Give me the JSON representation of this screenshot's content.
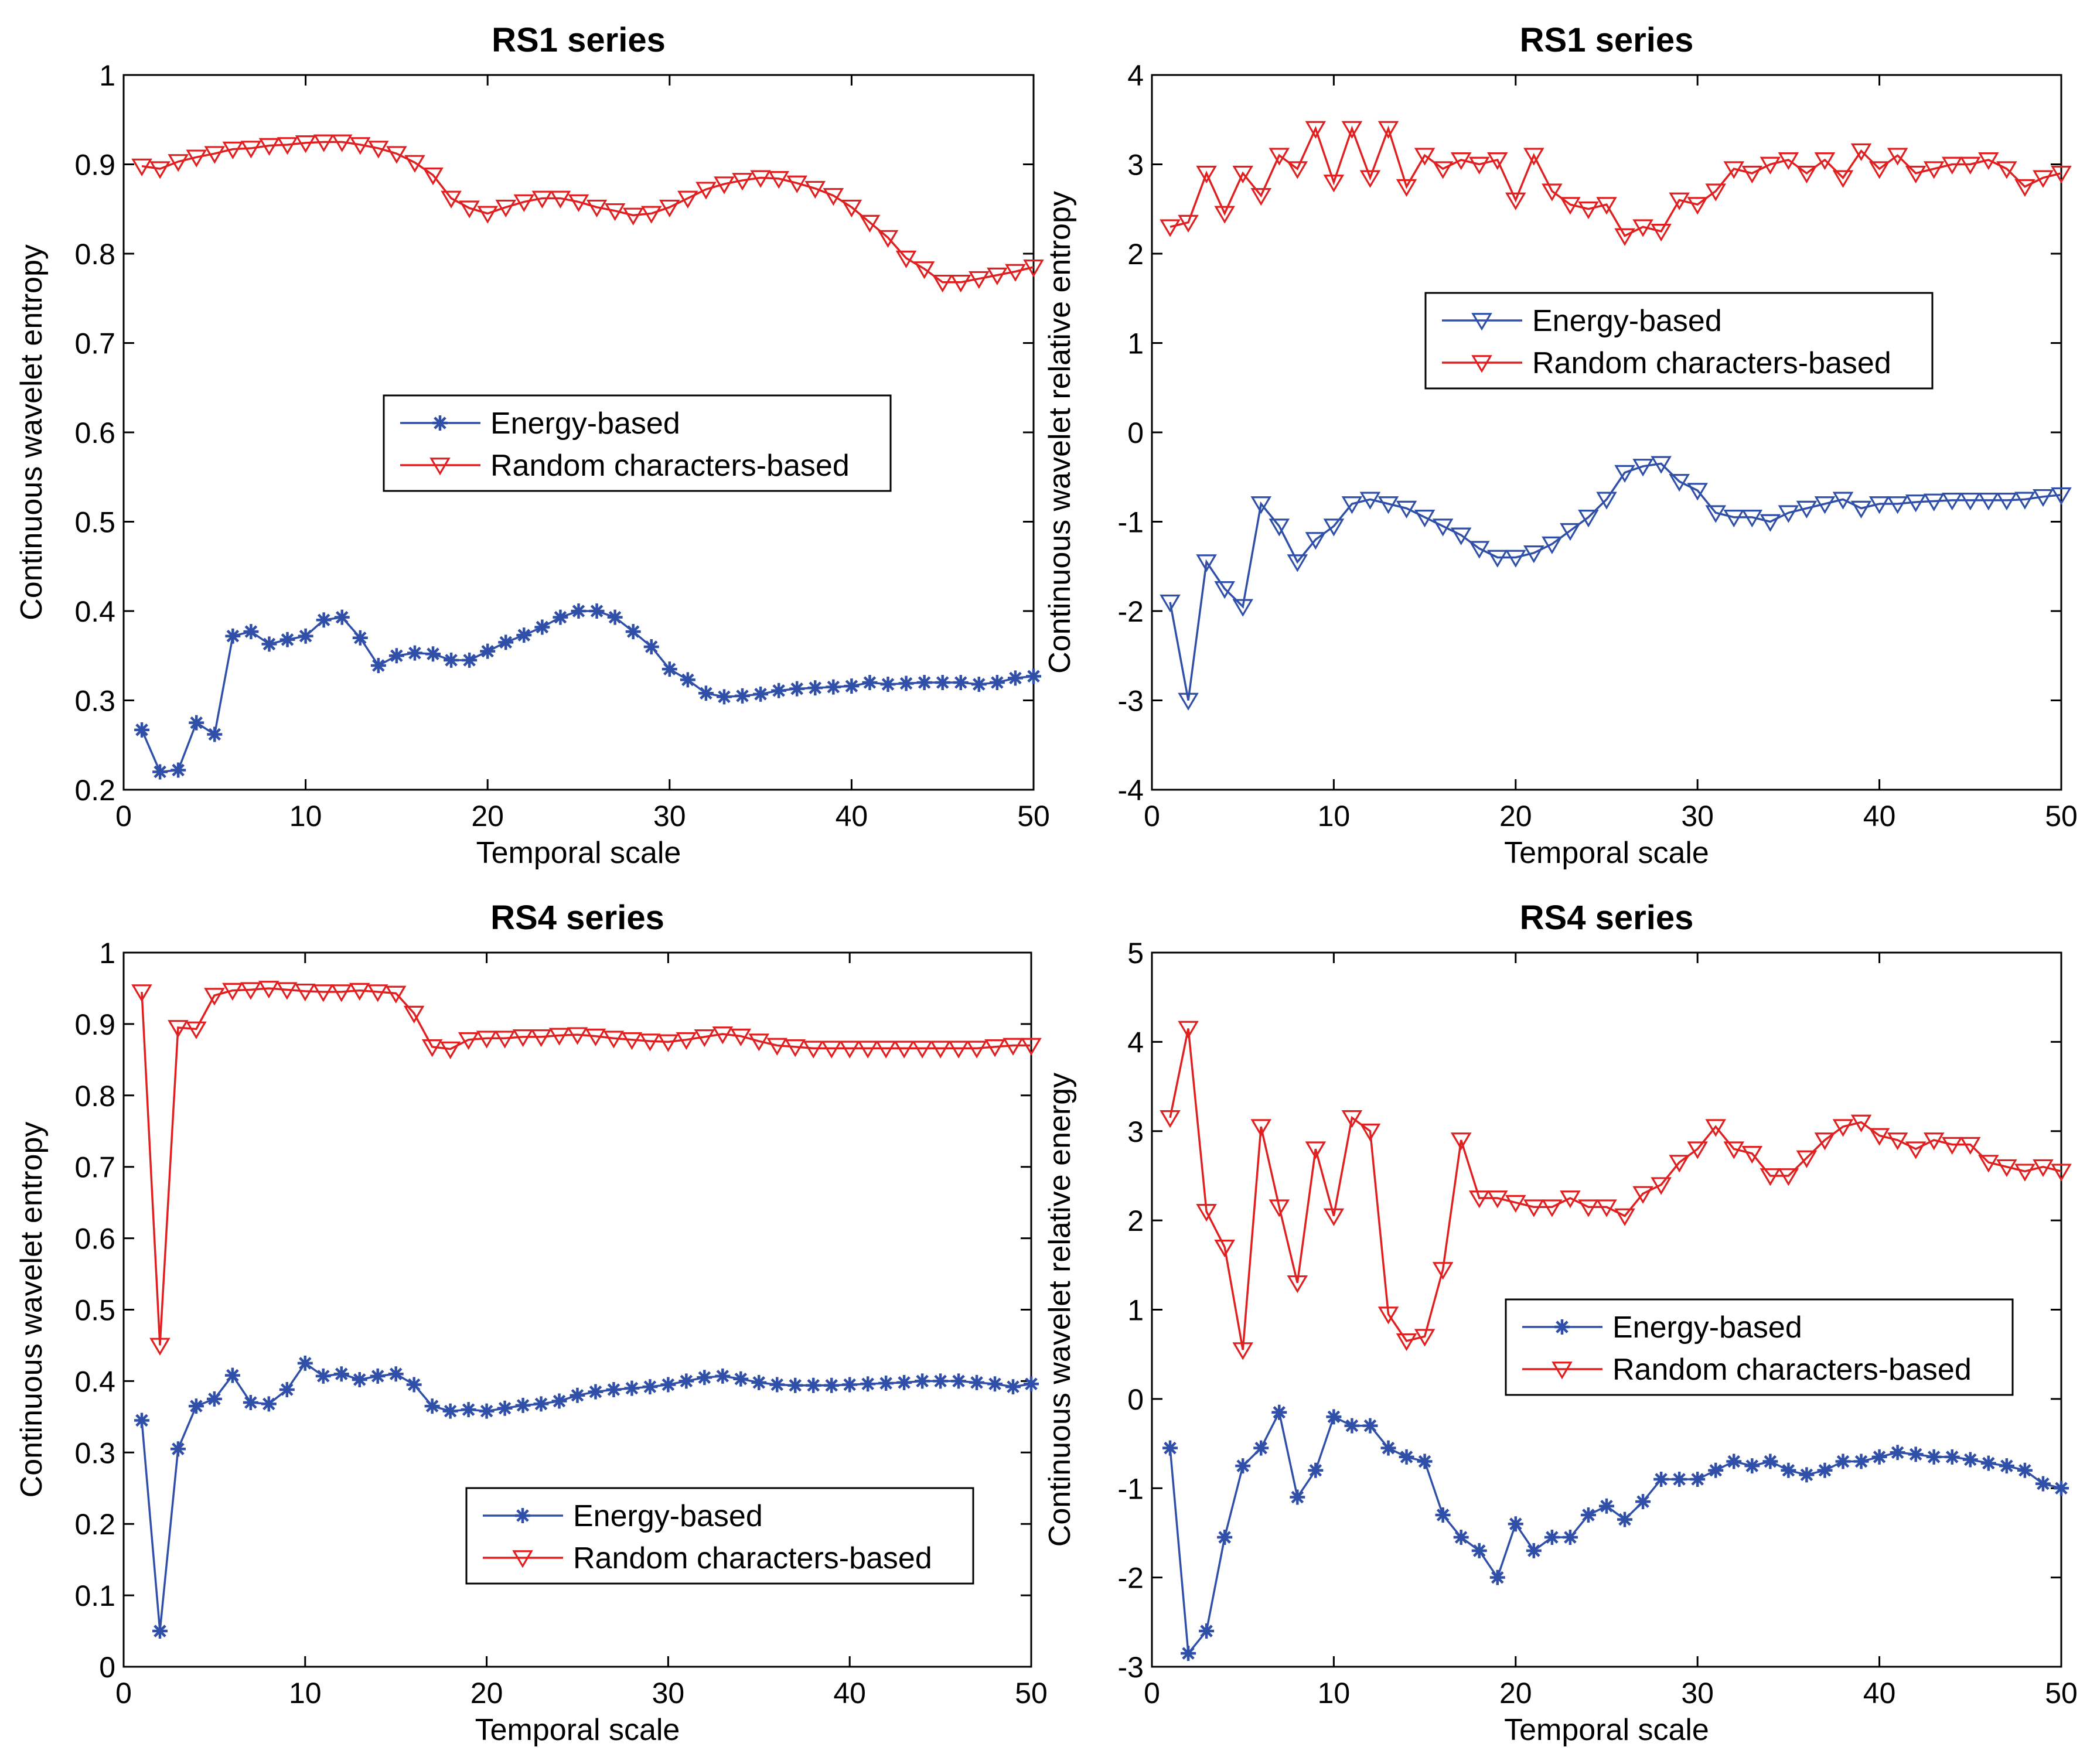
{
  "chart_data": [
    {
      "type": "line",
      "title": "RS1 series",
      "xlabel": "Temporal scale",
      "ylabel": "Continuous wavelet entropy",
      "xlim": [
        0,
        50
      ],
      "ylim": [
        0.2,
        1
      ],
      "xticks": [
        0,
        10,
        20,
        30,
        40,
        50
      ],
      "yticks": [
        0.2,
        0.3,
        0.4,
        0.5,
        0.6,
        0.7,
        0.8,
        0.9,
        1
      ],
      "ytick_labels": [
        "0.2",
        "0.3",
        "0.4",
        "0.5",
        "0.6",
        "0.7",
        "0.8",
        "0.9",
        "1"
      ],
      "legend_position": "center",
      "series": [
        {
          "name": "Energy-based",
          "color": "#2f4fa8",
          "marker": "star",
          "values": [
            0.267,
            0.22,
            0.222,
            0.275,
            0.262,
            0.372,
            0.377,
            0.363,
            0.368,
            0.372,
            0.39,
            0.393,
            0.37,
            0.339,
            0.35,
            0.353,
            0.352,
            0.345,
            0.345,
            0.355,
            0.365,
            0.373,
            0.382,
            0.393,
            0.4,
            0.4,
            0.393,
            0.377,
            0.36,
            0.335,
            0.323,
            0.308,
            0.304,
            0.305,
            0.307,
            0.311,
            0.313,
            0.314,
            0.315,
            0.316,
            0.32,
            0.318,
            0.319,
            0.32,
            0.32,
            0.32,
            0.318,
            0.32,
            0.325,
            0.327
          ]
        },
        {
          "name": "Random characters-based",
          "color": "#e02020",
          "marker": "triangle-down",
          "values": [
            0.898,
            0.895,
            0.903,
            0.908,
            0.912,
            0.917,
            0.918,
            0.921,
            0.922,
            0.924,
            0.925,
            0.925,
            0.922,
            0.918,
            0.912,
            0.902,
            0.888,
            0.862,
            0.851,
            0.845,
            0.852,
            0.858,
            0.862,
            0.862,
            0.858,
            0.852,
            0.848,
            0.843,
            0.845,
            0.852,
            0.862,
            0.872,
            0.878,
            0.882,
            0.885,
            0.884,
            0.879,
            0.873,
            0.865,
            0.852,
            0.835,
            0.818,
            0.795,
            0.783,
            0.768,
            0.768,
            0.772,
            0.776,
            0.78,
            0.785
          ]
        }
      ]
    },
    {
      "type": "line",
      "title": "RS1 series",
      "xlabel": "Temporal scale",
      "ylabel": "Continuous wavelet relative entropy",
      "xlim": [
        0,
        50
      ],
      "ylim": [
        -4,
        4
      ],
      "xticks": [
        0,
        10,
        20,
        30,
        40,
        50
      ],
      "yticks": [
        -4,
        -3,
        -2,
        -1,
        0,
        1,
        2,
        3,
        4
      ],
      "ytick_labels": [
        "-4",
        "-3",
        "-2",
        "-1",
        "0",
        "1",
        "2",
        "3",
        "4"
      ],
      "legend_position": "center",
      "series": [
        {
          "name": "Energy-based",
          "color": "#2f4fa8",
          "marker": "triangle-down",
          "values": [
            -1.9,
            -3.0,
            -1.45,
            -1.75,
            -1.95,
            -0.8,
            -1.05,
            -1.45,
            -1.2,
            -1.05,
            -0.8,
            -0.75,
            -0.8,
            -0.85,
            -0.95,
            -1.05,
            -1.15,
            -1.3,
            -1.4,
            -1.4,
            -1.35,
            -1.25,
            -1.1,
            -0.95,
            -0.75,
            -0.45,
            -0.38,
            -0.35,
            -0.55,
            -0.65,
            -0.9,
            -0.95,
            -0.95,
            -1.0,
            -0.9,
            -0.85,
            -0.8,
            -0.75,
            -0.85,
            -0.8,
            -0.8,
            -0.78,
            -0.77,
            -0.76,
            -0.76,
            -0.76,
            -0.76,
            -0.75,
            -0.72,
            -0.7
          ]
        },
        {
          "name": "Random characters-based",
          "color": "#e02020",
          "marker": "triangle-down",
          "values": [
            2.3,
            2.35,
            2.9,
            2.45,
            2.9,
            2.65,
            3.1,
            2.95,
            3.4,
            2.8,
            3.4,
            2.85,
            3.4,
            2.75,
            3.1,
            2.95,
            3.05,
            3.0,
            3.05,
            2.6,
            3.1,
            2.7,
            2.55,
            2.5,
            2.55,
            2.2,
            2.3,
            2.25,
            2.6,
            2.55,
            2.7,
            2.95,
            2.9,
            3.0,
            3.05,
            2.9,
            3.05,
            2.85,
            3.15,
            2.95,
            3.1,
            2.9,
            2.95,
            3.0,
            3.0,
            3.05,
            2.95,
            2.75,
            2.85,
            2.9
          ]
        }
      ]
    },
    {
      "type": "line",
      "title": "RS4 series",
      "xlabel": "Temporal scale",
      "ylabel": "Continuous wavelet entropy",
      "xlim": [
        0,
        50
      ],
      "ylim": [
        0,
        1
      ],
      "xticks": [
        0,
        10,
        20,
        30,
        40,
        50
      ],
      "yticks": [
        0,
        0.1,
        0.2,
        0.3,
        0.4,
        0.5,
        0.6,
        0.7,
        0.8,
        0.9,
        1
      ],
      "ytick_labels": [
        "0",
        "0.1",
        "0.2",
        "0.3",
        "0.4",
        "0.5",
        "0.6",
        "0.7",
        "0.8",
        "0.9",
        "1"
      ],
      "legend_position": "bottom-center",
      "series": [
        {
          "name": "Energy-based",
          "color": "#2f4fa8",
          "marker": "star",
          "values": [
            0.345,
            0.05,
            0.305,
            0.365,
            0.375,
            0.408,
            0.37,
            0.368,
            0.388,
            0.425,
            0.407,
            0.41,
            0.402,
            0.407,
            0.41,
            0.395,
            0.365,
            0.358,
            0.36,
            0.358,
            0.362,
            0.366,
            0.368,
            0.372,
            0.38,
            0.385,
            0.388,
            0.39,
            0.392,
            0.395,
            0.4,
            0.405,
            0.407,
            0.403,
            0.398,
            0.395,
            0.394,
            0.394,
            0.394,
            0.395,
            0.396,
            0.397,
            0.398,
            0.4,
            0.4,
            0.4,
            0.398,
            0.396,
            0.392,
            0.396
          ]
        },
        {
          "name": "Random characters-based",
          "color": "#e02020",
          "marker": "triangle-down",
          "values": [
            0.945,
            0.45,
            0.895,
            0.893,
            0.94,
            0.947,
            0.948,
            0.95,
            0.948,
            0.946,
            0.945,
            0.945,
            0.947,
            0.945,
            0.943,
            0.915,
            0.868,
            0.865,
            0.878,
            0.88,
            0.88,
            0.882,
            0.882,
            0.884,
            0.885,
            0.883,
            0.88,
            0.878,
            0.876,
            0.875,
            0.878,
            0.882,
            0.886,
            0.883,
            0.876,
            0.87,
            0.868,
            0.866,
            0.866,
            0.866,
            0.866,
            0.866,
            0.866,
            0.866,
            0.866,
            0.866,
            0.866,
            0.868,
            0.87,
            0.87
          ]
        }
      ]
    },
    {
      "type": "line",
      "title": "RS4 series",
      "xlabel": "Temporal scale",
      "ylabel": "Continuous wavelet relative energy",
      "xlim": [
        0,
        50
      ],
      "ylim": [
        -3,
        5
      ],
      "xticks": [
        0,
        10,
        20,
        30,
        40,
        50
      ],
      "yticks": [
        -3,
        -2,
        -1,
        0,
        1,
        2,
        3,
        4,
        5
      ],
      "ytick_labels": [
        "-3",
        "-2",
        "-1",
        "0",
        "1",
        "2",
        "3",
        "4",
        "5"
      ],
      "legend_position": "center",
      "series": [
        {
          "name": "Energy-based",
          "color": "#2f4fa8",
          "marker": "star",
          "values": [
            -0.55,
            -2.85,
            -2.6,
            -1.55,
            -0.75,
            -0.55,
            -0.15,
            -1.1,
            -0.8,
            -0.2,
            -0.3,
            -0.3,
            -0.55,
            -0.65,
            -0.7,
            -1.3,
            -1.55,
            -1.7,
            -2.0,
            -1.4,
            -1.7,
            -1.55,
            -1.55,
            -1.3,
            -1.2,
            -1.35,
            -1.15,
            -0.9,
            -0.9,
            -0.9,
            -0.8,
            -0.7,
            -0.75,
            -0.7,
            -0.8,
            -0.85,
            -0.8,
            -0.7,
            -0.7,
            -0.65,
            -0.6,
            -0.62,
            -0.65,
            -0.65,
            -0.68,
            -0.72,
            -0.75,
            -0.8,
            -0.95,
            -1.0
          ]
        },
        {
          "name": "Random characters-based",
          "color": "#e02020",
          "marker": "triangle-down",
          "values": [
            3.15,
            4.15,
            2.1,
            1.7,
            0.55,
            3.05,
            2.15,
            1.3,
            2.8,
            2.05,
            3.15,
            3.0,
            0.95,
            0.65,
            0.7,
            1.45,
            2.9,
            2.25,
            2.25,
            2.2,
            2.15,
            2.15,
            2.25,
            2.15,
            2.15,
            2.05,
            2.3,
            2.4,
            2.65,
            2.8,
            3.05,
            2.8,
            2.75,
            2.5,
            2.5,
            2.7,
            2.9,
            3.05,
            3.1,
            2.95,
            2.9,
            2.8,
            2.9,
            2.85,
            2.85,
            2.65,
            2.6,
            2.55,
            2.6,
            2.55
          ]
        }
      ]
    }
  ]
}
